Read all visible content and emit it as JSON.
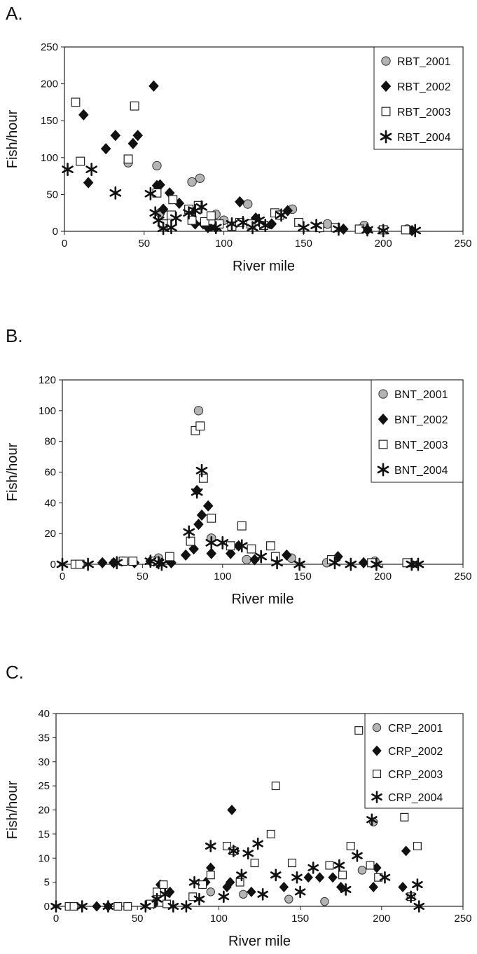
{
  "chart_data": [
    {
      "type": "scatter",
      "panel_label": "A.",
      "xlabel": "River mile",
      "ylabel": "Fish/hour",
      "xlim": [
        0,
        250
      ],
      "ylim": [
        0,
        250
      ],
      "xticks": [
        0,
        50,
        100,
        150,
        200,
        250
      ],
      "yticks": [
        0,
        50,
        100,
        150,
        200,
        250
      ],
      "grid": false,
      "legend": "top-right",
      "series": [
        {
          "name": "RBT_2001",
          "marker": "circle",
          "points": [
            [
              40,
              93
            ],
            [
              58,
              89
            ],
            [
              60,
              25
            ],
            [
              80,
              67
            ],
            [
              85,
              72
            ],
            [
              95,
              23
            ],
            [
              100,
              15
            ],
            [
              115,
              37
            ],
            [
              135,
              22
            ],
            [
              143,
              30
            ],
            [
              165,
              10
            ],
            [
              188,
              8
            ],
            [
              215,
              3
            ]
          ]
        },
        {
          "name": "RBT_2002",
          "marker": "diamond",
          "points": [
            [
              12,
              158
            ],
            [
              15,
              66
            ],
            [
              26,
              112
            ],
            [
              32,
              130
            ],
            [
              43,
              119
            ],
            [
              46,
              130
            ],
            [
              56,
              197
            ],
            [
              58,
              62
            ],
            [
              60,
              63
            ],
            [
              62,
              30
            ],
            [
              66,
              52
            ],
            [
              72,
              38
            ],
            [
              80,
              28
            ],
            [
              82,
              10
            ],
            [
              87,
              10
            ],
            [
              90,
              5
            ],
            [
              95,
              5
            ],
            [
              110,
              40
            ],
            [
              120,
              18
            ],
            [
              130,
              10
            ],
            [
              140,
              28
            ],
            [
              160,
              5
            ],
            [
              175,
              3
            ],
            [
              190,
              2
            ],
            [
              218,
              1
            ]
          ]
        },
        {
          "name": "RBT_2003",
          "marker": "square",
          "points": [
            [
              7,
              175
            ],
            [
              10,
              95
            ],
            [
              40,
              98
            ],
            [
              44,
              170
            ],
            [
              58,
              52
            ],
            [
              62,
              10
            ],
            [
              67,
              22
            ],
            [
              68,
              43
            ],
            [
              78,
              30
            ],
            [
              80,
              15
            ],
            [
              84,
              35
            ],
            [
              88,
              13
            ],
            [
              92,
              21
            ],
            [
              97,
              10
            ],
            [
              105,
              7
            ],
            [
              110,
              12
            ],
            [
              117,
              10
            ],
            [
              125,
              8
            ],
            [
              132,
              25
            ],
            [
              135,
              22
            ],
            [
              147,
              12
            ],
            [
              160,
              5
            ],
            [
              170,
              5
            ],
            [
              185,
              3
            ],
            [
              200,
              2
            ],
            [
              214,
              2
            ]
          ]
        },
        {
          "name": "RBT_2004",
          "marker": "asterisk",
          "points": [
            [
              2,
              84
            ],
            [
              17,
              84
            ],
            [
              32,
              52
            ],
            [
              54,
              51
            ],
            [
              57,
              25
            ],
            [
              59,
              15
            ],
            [
              62,
              4
            ],
            [
              67,
              5
            ],
            [
              70,
              18
            ],
            [
              78,
              25
            ],
            [
              82,
              28
            ],
            [
              86,
              33
            ],
            [
              95,
              5
            ],
            [
              105,
              10
            ],
            [
              112,
              12
            ],
            [
              118,
              5
            ],
            [
              122,
              15
            ],
            [
              126,
              8
            ],
            [
              136,
              22
            ],
            [
              150,
              5
            ],
            [
              158,
              8
            ],
            [
              172,
              3
            ],
            [
              190,
              2
            ],
            [
              200,
              1
            ],
            [
              220,
              1
            ]
          ]
        }
      ]
    },
    {
      "type": "scatter",
      "panel_label": "B.",
      "xlabel": "River mile",
      "ylabel": "Fish/hour",
      "xlim": [
        0,
        250
      ],
      "ylim": [
        0,
        120
      ],
      "xticks": [
        0,
        50,
        100,
        150,
        200,
        250
      ],
      "yticks": [
        0,
        20,
        40,
        60,
        80,
        100,
        120
      ],
      "grid": false,
      "legend": "top-right",
      "series": [
        {
          "name": "BNT_2001",
          "marker": "circle",
          "points": [
            [
              38,
              2
            ],
            [
              60,
              4
            ],
            [
              85,
              100
            ],
            [
              93,
              17
            ],
            [
              115,
              3
            ],
            [
              143,
              4
            ],
            [
              165,
              1
            ],
            [
              195,
              2
            ]
          ]
        },
        {
          "name": "BNT_2002",
          "marker": "diamond",
          "points": [
            [
              25,
              1
            ],
            [
              32,
              1
            ],
            [
              45,
              1
            ],
            [
              55,
              2
            ],
            [
              60,
              1
            ],
            [
              68,
              1
            ],
            [
              77,
              6
            ],
            [
              82,
              10
            ],
            [
              84,
              48
            ],
            [
              85,
              26
            ],
            [
              87,
              32
            ],
            [
              91,
              38
            ],
            [
              93,
              7
            ],
            [
              105,
              7
            ],
            [
              110,
              12
            ],
            [
              120,
              3
            ],
            [
              140,
              6
            ],
            [
              172,
              5
            ],
            [
              188,
              1
            ]
          ]
        },
        {
          "name": "BNT_2003",
          "marker": "square",
          "points": [
            [
              8,
              0
            ],
            [
              11,
              0
            ],
            [
              38,
              2
            ],
            [
              44,
              2
            ],
            [
              58,
              2
            ],
            [
              67,
              5
            ],
            [
              80,
              15
            ],
            [
              83,
              87
            ],
            [
              86,
              90
            ],
            [
              88,
              56
            ],
            [
              93,
              30
            ],
            [
              105,
              12
            ],
            [
              112,
              25
            ],
            [
              118,
              10
            ],
            [
              130,
              12
            ],
            [
              133,
              5
            ],
            [
              168,
              3
            ],
            [
              193,
              1
            ],
            [
              215,
              1
            ]
          ]
        },
        {
          "name": "BNT_2004",
          "marker": "asterisk",
          "points": [
            [
              0,
              0
            ],
            [
              16,
              0
            ],
            [
              34,
              1
            ],
            [
              55,
              2
            ],
            [
              60,
              1
            ],
            [
              62,
              0
            ],
            [
              79,
              21
            ],
            [
              84,
              47
            ],
            [
              87,
              61
            ],
            [
              93,
              14
            ],
            [
              100,
              14
            ],
            [
              112,
              12
            ],
            [
              124,
              5
            ],
            [
              134,
              1
            ],
            [
              148,
              0
            ],
            [
              170,
              1
            ],
            [
              180,
              0
            ],
            [
              196,
              0
            ],
            [
              218,
              0
            ],
            [
              222,
              0
            ]
          ]
        }
      ]
    },
    {
      "type": "scatter",
      "panel_label": "C.",
      "xlabel": "River mile",
      "ylabel": "Fish/hour",
      "xlim": [
        0,
        250
      ],
      "ylim": [
        0,
        40
      ],
      "xticks": [
        0,
        50,
        100,
        150,
        200,
        250
      ],
      "yticks": [
        0,
        5,
        10,
        15,
        20,
        25,
        30,
        35,
        40
      ],
      "grid": false,
      "legend": "top-right",
      "series": [
        {
          "name": "CRP_2001",
          "marker": "circle",
          "points": [
            [
              60,
              0.5
            ],
            [
              95,
              3
            ],
            [
              115,
              2.5
            ],
            [
              143,
              1.5
            ],
            [
              165,
              1
            ],
            [
              188,
              7.5
            ],
            [
              195,
              17.5
            ]
          ]
        },
        {
          "name": "CRP_2002",
          "marker": "diamond",
          "points": [
            [
              25,
              0
            ],
            [
              32,
              0
            ],
            [
              60,
              0.5
            ],
            [
              64,
              4.5
            ],
            [
              70,
              3
            ],
            [
              92,
              5
            ],
            [
              95,
              8
            ],
            [
              105,
              4
            ],
            [
              107,
              5
            ],
            [
              108,
              20
            ],
            [
              110,
              11.5
            ],
            [
              120,
              3
            ],
            [
              140,
              4
            ],
            [
              155,
              6
            ],
            [
              162,
              6
            ],
            [
              170,
              6
            ],
            [
              175,
              4
            ],
            [
              195,
              4
            ],
            [
              197,
              8
            ],
            [
              213,
              4
            ],
            [
              215,
              11.5
            ]
          ]
        },
        {
          "name": "CRP_2003",
          "marker": "square",
          "points": [
            [
              8,
              0
            ],
            [
              11,
              0
            ],
            [
              38,
              0
            ],
            [
              44,
              0
            ],
            [
              58,
              0.5
            ],
            [
              62,
              3
            ],
            [
              66,
              4.5
            ],
            [
              68,
              0.5
            ],
            [
              84,
              2
            ],
            [
              90,
              4.5
            ],
            [
              95,
              6.5
            ],
            [
              105,
              12.5
            ],
            [
              109,
              11.5
            ],
            [
              113,
              5
            ],
            [
              122,
              9
            ],
            [
              132,
              15
            ],
            [
              135,
              25
            ],
            [
              145,
              9
            ],
            [
              168,
              8.5
            ],
            [
              176,
              6.5
            ],
            [
              181,
              12.5
            ],
            [
              186,
              36.5
            ],
            [
              193,
              8.5
            ],
            [
              198,
              6
            ],
            [
              214,
              18.5
            ],
            [
              218,
              2
            ],
            [
              222,
              12.5
            ]
          ]
        },
        {
          "name": "CRP_2004",
          "marker": "asterisk",
          "points": [
            [
              0,
              0
            ],
            [
              16,
              0
            ],
            [
              32,
              0
            ],
            [
              55,
              0
            ],
            [
              62,
              1.5
            ],
            [
              67,
              2.5
            ],
            [
              72,
              0
            ],
            [
              80,
              0
            ],
            [
              85,
              5
            ],
            [
              88,
              1.5
            ],
            [
              95,
              12.5
            ],
            [
              103,
              2
            ],
            [
              109,
              11.5
            ],
            [
              114,
              6.5
            ],
            [
              118,
              11
            ],
            [
              124,
              13
            ],
            [
              127,
              2.5
            ],
            [
              135,
              6.5
            ],
            [
              148,
              6
            ],
            [
              150,
              3
            ],
            [
              158,
              8
            ],
            [
              174,
              8.5
            ],
            [
              178,
              3.5
            ],
            [
              185,
              10.5
            ],
            [
              194,
              18
            ],
            [
              202,
              6
            ],
            [
              218,
              2
            ],
            [
              222,
              4.5
            ],
            [
              223,
              0
            ]
          ]
        }
      ]
    }
  ]
}
